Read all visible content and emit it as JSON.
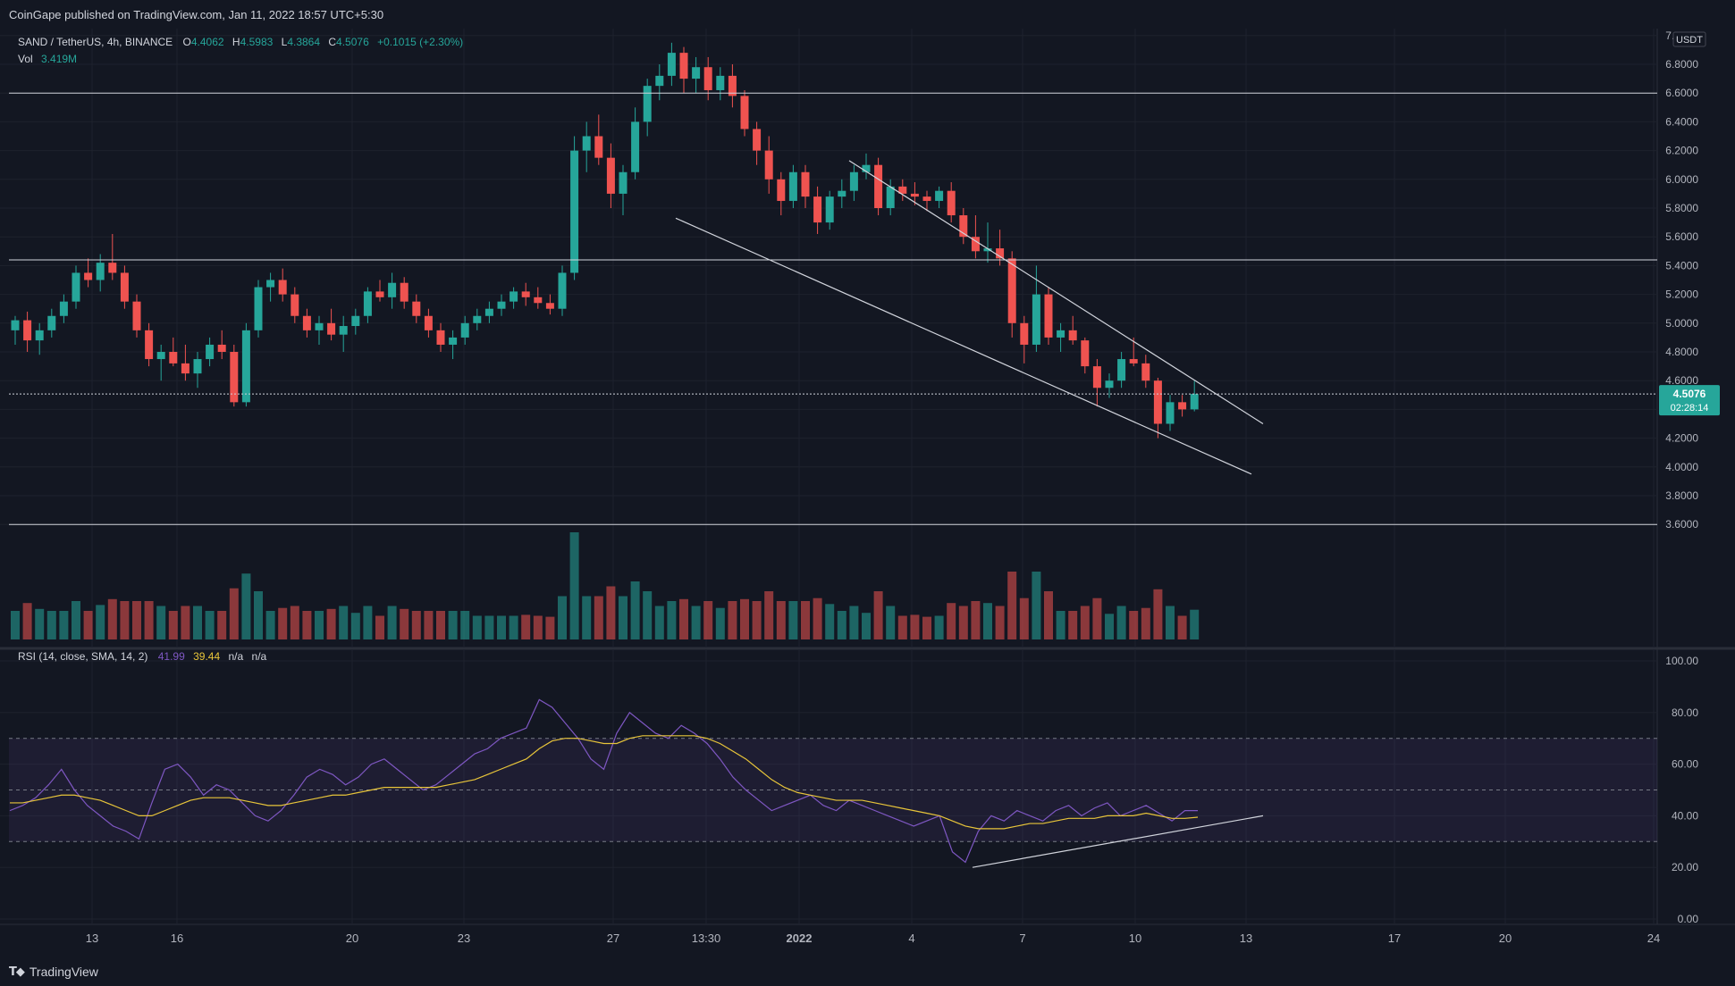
{
  "header": {
    "published": "CoinGape published on TradingView.com, Jan 11, 2022 18:57 UTC+5:30"
  },
  "legend": {
    "symbol": "SAND / TetherUS, 4h, BINANCE",
    "o_label": "O",
    "o_value": "4.4062",
    "h_label": "H",
    "h_value": "4.5983",
    "l_label": "L",
    "l_value": "4.3864",
    "c_label": "C",
    "c_value": "4.5076",
    "change": "+0.1015 (+2.30%)",
    "vol_label": "Vol",
    "vol_value": "3.419M"
  },
  "price_axis": {
    "currency": "USDT",
    "ticks": [
      "7.0000",
      "6.8000",
      "6.6000",
      "6.4000",
      "6.2000",
      "6.0000",
      "5.8000",
      "5.6000",
      "5.4000",
      "5.2000",
      "5.0000",
      "4.8000",
      "4.6000",
      "4.4000",
      "4.2000",
      "4.0000",
      "3.8000",
      "3.6000"
    ],
    "last_price": "4.5076",
    "countdown": "02:28:14"
  },
  "rsi": {
    "label": "RSI (14, close, SMA, 14, 2)",
    "value": "41.99",
    "sma_value": "39.44",
    "na1": "n/a",
    "na2": "n/a",
    "ticks": [
      "100.00",
      "80.00",
      "60.00",
      "40.00",
      "20.00",
      "0.00"
    ]
  },
  "time_axis": {
    "ticks": [
      "13",
      "16",
      "20",
      "23",
      "27",
      "13:30",
      "2022",
      "4",
      "7",
      "10",
      "13",
      "17",
      "20",
      "24"
    ]
  },
  "footer": {
    "brand": "TradingView"
  },
  "colors": {
    "up": "#26a69a",
    "down": "#ef5350",
    "rsi": "#7e57c2",
    "rsi_sma": "#e8c53a",
    "background": "#131722"
  },
  "chart_data": {
    "type": "candlestick",
    "symbol": "SAND / TetherUS",
    "timeframe": "4h",
    "exchange": "BINANCE",
    "ylim": [
      3.58,
      7.0
    ],
    "horizontal_levels": [
      6.6,
      5.44,
      4.5076
    ],
    "channel": {
      "upper": [
        [
          28.1,
          6.13
        ],
        [
          35.5,
          4.3
        ]
      ],
      "lower": [
        [
          24.6,
          5.73
        ],
        [
          35.3,
          3.95
        ]
      ]
    },
    "candles": [
      [
        4.95,
        5.05,
        4.85,
        5.02
      ],
      [
        5.02,
        5.08,
        4.8,
        4.88
      ],
      [
        4.88,
        5.0,
        4.78,
        4.95
      ],
      [
        4.95,
        5.1,
        4.9,
        5.05
      ],
      [
        5.05,
        5.2,
        5.0,
        5.15
      ],
      [
        5.15,
        5.4,
        5.1,
        5.35
      ],
      [
        5.35,
        5.45,
        5.25,
        5.3
      ],
      [
        5.3,
        5.48,
        5.22,
        5.42
      ],
      [
        5.42,
        5.62,
        5.3,
        5.35
      ],
      [
        5.35,
        5.4,
        5.1,
        5.15
      ],
      [
        5.15,
        5.2,
        4.9,
        4.95
      ],
      [
        4.95,
        5.0,
        4.7,
        4.75
      ],
      [
        4.75,
        4.85,
        4.6,
        4.8
      ],
      [
        4.8,
        4.9,
        4.7,
        4.72
      ],
      [
        4.72,
        4.85,
        4.6,
        4.65
      ],
      [
        4.65,
        4.8,
        4.55,
        4.75
      ],
      [
        4.75,
        4.9,
        4.7,
        4.85
      ],
      [
        4.85,
        4.95,
        4.75,
        4.8
      ],
      [
        4.8,
        4.85,
        4.42,
        4.45
      ],
      [
        4.45,
        5.0,
        4.42,
        4.95
      ],
      [
        4.95,
        5.3,
        4.9,
        5.25
      ],
      [
        5.25,
        5.35,
        5.15,
        5.3
      ],
      [
        5.3,
        5.38,
        5.15,
        5.2
      ],
      [
        5.2,
        5.25,
        5.0,
        5.05
      ],
      [
        5.05,
        5.1,
        4.9,
        4.95
      ],
      [
        4.95,
        5.05,
        4.85,
        5.0
      ],
      [
        5.0,
        5.1,
        4.88,
        4.92
      ],
      [
        4.92,
        5.05,
        4.8,
        4.98
      ],
      [
        4.98,
        5.1,
        4.92,
        5.05
      ],
      [
        5.05,
        5.25,
        5.0,
        5.22
      ],
      [
        5.22,
        5.3,
        5.15,
        5.18
      ],
      [
        5.18,
        5.35,
        5.1,
        5.28
      ],
      [
        5.28,
        5.32,
        5.1,
        5.15
      ],
      [
        5.15,
        5.2,
        5.0,
        5.05
      ],
      [
        5.05,
        5.1,
        4.9,
        4.95
      ],
      [
        4.95,
        5.0,
        4.8,
        4.85
      ],
      [
        4.85,
        4.95,
        4.75,
        4.9
      ],
      [
        4.9,
        5.05,
        4.85,
        5.0
      ],
      [
        5.0,
        5.1,
        4.95,
        5.05
      ],
      [
        5.05,
        5.15,
        5.0,
        5.1
      ],
      [
        5.1,
        5.2,
        5.05,
        5.15
      ],
      [
        5.15,
        5.25,
        5.1,
        5.22
      ],
      [
        5.22,
        5.28,
        5.12,
        5.18
      ],
      [
        5.18,
        5.25,
        5.1,
        5.14
      ],
      [
        5.14,
        5.2,
        5.06,
        5.1
      ],
      [
        5.1,
        5.4,
        5.05,
        5.35
      ],
      [
        5.35,
        6.3,
        5.3,
        6.2
      ],
      [
        6.2,
        6.4,
        6.05,
        6.3
      ],
      [
        6.3,
        6.45,
        6.1,
        6.15
      ],
      [
        6.15,
        6.25,
        5.8,
        5.9
      ],
      [
        5.9,
        6.1,
        5.75,
        6.05
      ],
      [
        6.05,
        6.5,
        6.0,
        6.4
      ],
      [
        6.4,
        6.7,
        6.3,
        6.65
      ],
      [
        6.65,
        6.8,
        6.55,
        6.72
      ],
      [
        6.72,
        6.95,
        6.65,
        6.88
      ],
      [
        6.88,
        6.92,
        6.6,
        6.7
      ],
      [
        6.7,
        6.85,
        6.6,
        6.78
      ],
      [
        6.78,
        6.85,
        6.55,
        6.62
      ],
      [
        6.62,
        6.78,
        6.55,
        6.72
      ],
      [
        6.72,
        6.8,
        6.5,
        6.58
      ],
      [
        6.58,
        6.62,
        6.3,
        6.35
      ],
      [
        6.35,
        6.4,
        6.1,
        6.2
      ],
      [
        6.2,
        6.3,
        5.9,
        6.0
      ],
      [
        6.0,
        6.05,
        5.75,
        5.85
      ],
      [
        5.85,
        6.1,
        5.8,
        6.05
      ],
      [
        6.05,
        6.1,
        5.8,
        5.88
      ],
      [
        5.88,
        5.95,
        5.62,
        5.7
      ],
      [
        5.7,
        5.92,
        5.65,
        5.88
      ],
      [
        5.88,
        6.0,
        5.8,
        5.92
      ],
      [
        5.92,
        6.1,
        5.85,
        6.05
      ],
      [
        6.05,
        6.18,
        6.0,
        6.1
      ],
      [
        6.1,
        6.15,
        5.75,
        5.8
      ],
      [
        5.8,
        6.0,
        5.75,
        5.95
      ],
      [
        5.95,
        6.0,
        5.85,
        5.9
      ],
      [
        5.9,
        5.98,
        5.82,
        5.88
      ],
      [
        5.88,
        5.92,
        5.78,
        5.85
      ],
      [
        5.85,
        5.95,
        5.8,
        5.92
      ],
      [
        5.92,
        5.98,
        5.7,
        5.75
      ],
      [
        5.75,
        5.8,
        5.55,
        5.6
      ],
      [
        5.6,
        5.75,
        5.45,
        5.5
      ],
      [
        5.5,
        5.7,
        5.42,
        5.52
      ],
      [
        5.52,
        5.65,
        5.4,
        5.45
      ],
      [
        5.45,
        5.5,
        4.9,
        5.0
      ],
      [
        5.0,
        5.05,
        4.72,
        4.85
      ],
      [
        4.85,
        5.4,
        4.8,
        5.2
      ],
      [
        5.2,
        5.25,
        4.85,
        4.9
      ],
      [
        4.9,
        5.0,
        4.8,
        4.95
      ],
      [
        4.95,
        5.05,
        4.85,
        4.88
      ],
      [
        4.88,
        4.9,
        4.65,
        4.7
      ],
      [
        4.7,
        4.75,
        4.42,
        4.55
      ],
      [
        4.55,
        4.65,
        4.48,
        4.6
      ],
      [
        4.6,
        4.8,
        4.55,
        4.75
      ],
      [
        4.75,
        4.9,
        4.7,
        4.72
      ],
      [
        4.72,
        4.78,
        4.55,
        4.6
      ],
      [
        4.6,
        4.62,
        4.2,
        4.3
      ],
      [
        4.3,
        4.5,
        4.25,
        4.45
      ],
      [
        4.45,
        4.5,
        4.35,
        4.4
      ],
      [
        4.4,
        4.5983,
        4.3864,
        4.5076
      ]
    ],
    "rsi": {
      "ylim": [
        0,
        100
      ],
      "bands": [
        30,
        50,
        70
      ],
      "values": [
        42,
        44,
        47,
        52,
        58,
        50,
        44,
        40,
        36,
        34,
        31,
        45,
        58,
        60,
        55,
        48,
        52,
        50,
        45,
        40,
        38,
        42,
        48,
        55,
        58,
        56,
        52,
        55,
        60,
        62,
        58,
        54,
        50,
        52,
        56,
        60,
        64,
        66,
        70,
        72,
        74,
        85,
        82,
        76,
        70,
        62,
        58,
        72,
        80,
        76,
        72,
        70,
        75,
        72,
        68,
        62,
        55,
        50,
        46,
        42,
        44,
        46,
        48,
        44,
        42,
        46,
        44,
        42,
        40,
        38,
        36,
        38,
        40,
        26,
        22,
        34,
        40,
        38,
        42,
        40,
        38,
        42,
        44,
        40,
        43,
        45,
        40,
        42,
        44,
        41,
        38,
        42,
        41.99
      ],
      "sma_values": [
        45,
        45,
        46,
        47,
        48,
        48,
        47,
        46,
        44,
        42,
        40,
        40,
        42,
        44,
        46,
        47,
        47,
        47,
        46,
        45,
        44,
        44,
        45,
        46,
        47,
        48,
        48,
        49,
        50,
        51,
        51,
        51,
        51,
        51,
        52,
        53,
        54,
        56,
        58,
        60,
        62,
        66,
        69,
        70,
        70,
        69,
        68,
        68,
        70,
        71,
        71,
        71,
        71,
        71,
        70,
        68,
        65,
        62,
        58,
        54,
        51,
        49,
        48,
        47,
        46,
        46,
        46,
        45,
        44,
        43,
        42,
        41,
        40,
        38,
        36,
        35,
        35,
        35,
        36,
        37,
        37,
        38,
        39,
        39,
        39,
        40,
        40,
        40,
        41,
        40,
        39,
        39,
        39.44
      ],
      "trendline": [
        [
          22.8,
          20
        ],
        [
          35.5,
          40
        ]
      ]
    }
  }
}
